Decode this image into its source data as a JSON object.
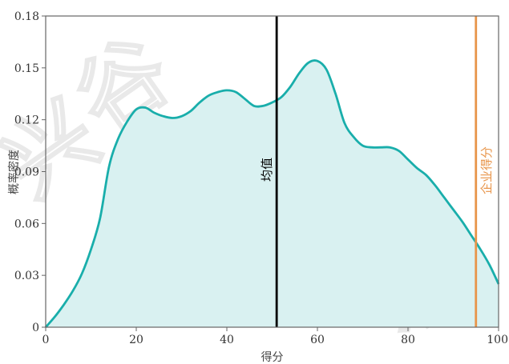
{
  "chart_data": {
    "type": "area",
    "xlabel": "得分",
    "ylabel": "概率密度",
    "xlim": [
      0,
      100
    ],
    "ylim": [
      0,
      0.18
    ],
    "xticks": [
      0,
      20,
      40,
      60,
      80,
      100
    ],
    "yticks": [
      0,
      0.03,
      0.06,
      0.09,
      0.12,
      0.15,
      0.18
    ],
    "xtick_labels": [
      "0",
      "20",
      "40",
      "60",
      "80",
      "100"
    ],
    "ytick_labels": [
      "0",
      "0.03",
      "0.06",
      "0.09",
      "0.12",
      "0.15",
      "0.18"
    ],
    "x": [
      0,
      2,
      4,
      6,
      8,
      10,
      12,
      14,
      16,
      18,
      20,
      22,
      24,
      26,
      28,
      30,
      32,
      34,
      36,
      38,
      40,
      42,
      44,
      46,
      48,
      50,
      52,
      54,
      56,
      58,
      60,
      62,
      64,
      66,
      68,
      70,
      72,
      74,
      76,
      78,
      80,
      82,
      84,
      86,
      88,
      90,
      92,
      94,
      96,
      98,
      100
    ],
    "y": [
      0.0,
      0.006,
      0.013,
      0.021,
      0.031,
      0.045,
      0.063,
      0.093,
      0.109,
      0.119,
      0.126,
      0.127,
      0.124,
      0.122,
      0.121,
      0.122,
      0.125,
      0.13,
      0.134,
      0.136,
      0.137,
      0.136,
      0.132,
      0.128,
      0.128,
      0.13,
      0.133,
      0.139,
      0.147,
      0.153,
      0.154,
      0.149,
      0.135,
      0.118,
      0.11,
      0.105,
      0.104,
      0.104,
      0.104,
      0.102,
      0.097,
      0.092,
      0.088,
      0.082,
      0.075,
      0.068,
      0.061,
      0.053,
      0.045,
      0.036,
      0.025
    ],
    "fill_color": "#d9f1f1",
    "line_color": "#19aeab",
    "mean": {
      "x": 51,
      "label": "均值",
      "color": "#000000"
    },
    "company": {
      "x": 95,
      "label": "企业得分",
      "color": "#e8954a"
    },
    "grid": false
  },
  "watermark": {
    "chars": [
      "兴",
      "谷",
      "示"
    ]
  }
}
